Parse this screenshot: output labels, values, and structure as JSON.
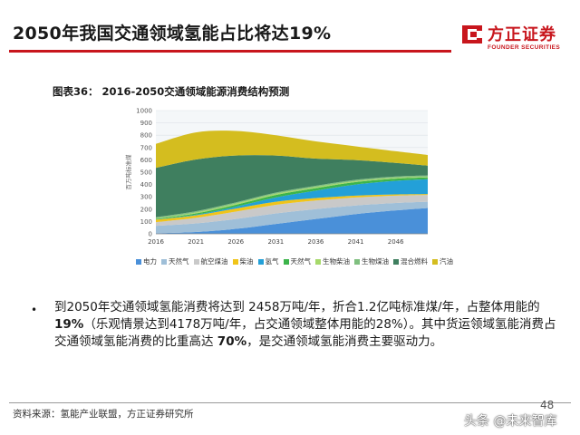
{
  "slide": {
    "title": "2050年我国交通领域氢能占比将达19%",
    "page_number": "48",
    "source": "资料来源：氢能产业联盟，方正证券研究所",
    "watermark": "头条 @未来智库"
  },
  "logo": {
    "name_cn": "方正证券",
    "name_en": "FOUNDER SECURITIES",
    "brand_color": "#c8161d"
  },
  "chart_title": "图表36：  2016-2050交通领域能源消费结构预测",
  "bullet": {
    "part1": "到2050年交通领域氢能消费将达到 2458万吨/年，折合1.2亿吨标准煤/年，占整体用能的",
    "bold1": "19%",
    "part2": "（乐观情景达到4178万吨/年，占交通领域整体用能的28%）。其中货运领域氢能消费占交通领域氢能消费的比重高达",
    "bold2": "70%",
    "part3": "，是交通领域氢能消费主要驱动力。"
  },
  "chart_data": {
    "type": "area",
    "stacked": true,
    "title": "图表36：  2016-2050交通领域能源消费结构预测",
    "ylabel": "百万吨标准煤",
    "ylim": [
      0,
      1000
    ],
    "yticks": [
      0,
      100,
      200,
      300,
      400,
      500,
      600,
      700,
      800,
      900,
      1000
    ],
    "x": [
      2016,
      2021,
      2026,
      2031,
      2036,
      2041,
      2046,
      2050
    ],
    "xticks": [
      "2016",
      "2021",
      "2026",
      "2031",
      "2036",
      "2041",
      "2046"
    ],
    "grid": true,
    "legend_position": "bottom",
    "series": [
      {
        "name": "电力",
        "color": "#4a90d9",
        "values": [
          5,
          15,
          40,
          80,
          120,
          160,
          190,
          210
        ]
      },
      {
        "name": "天然气",
        "color": "#9fbfd8",
        "values": [
          60,
          70,
          80,
          85,
          80,
          70,
          60,
          50
        ]
      },
      {
        "name": "航空煤油",
        "color": "#c9c9c9",
        "values": [
          30,
          45,
          60,
          70,
          70,
          65,
          60,
          55
        ]
      },
      {
        "name": "柴油",
        "color": "#f0c419",
        "values": [
          20,
          20,
          25,
          25,
          20,
          15,
          10,
          8
        ]
      },
      {
        "name": "氢气",
        "color": "#23a0d8",
        "values": [
          0,
          5,
          15,
          35,
          60,
          90,
          110,
          120
        ]
      },
      {
        "name": "天然气",
        "color": "#3cb44b",
        "values": [
          5,
          10,
          15,
          20,
          20,
          20,
          18,
          15
        ]
      },
      {
        "name": "生物柴油",
        "color": "#a6d96a",
        "values": [
          5,
          8,
          10,
          10,
          10,
          8,
          7,
          5
        ]
      },
      {
        "name": "生物煤油",
        "color": "#7fbf7f",
        "values": [
          10,
          10,
          10,
          10,
          10,
          10,
          10,
          10
        ]
      },
      {
        "name": "混合燃料",
        "color": "#3f7f5f",
        "values": [
          400,
          420,
          380,
          300,
          220,
          160,
          110,
          80
        ]
      },
      {
        "name": "汽油",
        "color": "#d4bd1f",
        "values": [
          195,
          220,
          200,
          165,
          140,
          112,
          95,
          87
        ]
      }
    ]
  }
}
